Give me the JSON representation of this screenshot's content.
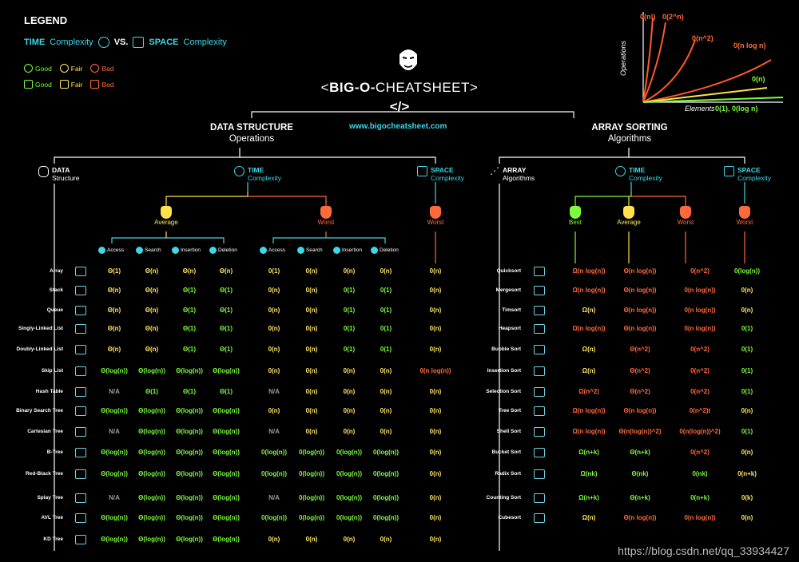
{
  "legend": {
    "title": "LEGEND",
    "time_word": "TIME",
    "time_suffix": "Complexity",
    "vs": "VS.",
    "space_word": "SPACE",
    "space_suffix": "Complexity",
    "good": "Good",
    "fair": "Fair",
    "bad": "Bad"
  },
  "header": {
    "title_prefix": "<",
    "title_bold": "BIG-O-",
    "title_rest": "CHEATSHEET>",
    "code": "</>",
    "site": "www.bigocheatsheet.com"
  },
  "graph": {
    "labels": [
      "0(n!)",
      "0(2^n)",
      "0(n^2)",
      "0(n log n)",
      "0(n)",
      "0(1), 0(log n)"
    ],
    "y_label": "Operations",
    "x_label": "Elements"
  },
  "ds": {
    "title": "DATA STRUCTURE",
    "subtitle": "Operations",
    "col_data_a": "DATA",
    "col_data_b": "Structure",
    "col_time_a": "TIME",
    "col_time_b": "Complexity",
    "col_space_a": "SPACE",
    "col_space_b": "Complexity",
    "average": "Average",
    "worst": "Worst",
    "worst_space": "Worst",
    "ops": [
      "Access",
      "Search",
      "Insertion",
      "Deletion"
    ],
    "rows": [
      {
        "name": "Array",
        "avg": [
          [
            "Θ(1)",
            "y"
          ],
          [
            "Θ(n)",
            "y"
          ],
          [
            "Θ(n)",
            "y"
          ],
          [
            "Θ(n)",
            "y"
          ]
        ],
        "worst": [
          [
            "0(1)",
            "y"
          ],
          [
            "0(n)",
            "y"
          ],
          [
            "0(n)",
            "y"
          ],
          [
            "0(n)",
            "y"
          ]
        ],
        "space": [
          "0(n)",
          "y"
        ]
      },
      {
        "name": "Stack",
        "avg": [
          [
            "Θ(n)",
            "y"
          ],
          [
            "Θ(n)",
            "y"
          ],
          [
            "Θ(1)",
            "g"
          ],
          [
            "Θ(1)",
            "g"
          ]
        ],
        "worst": [
          [
            "0(n)",
            "y"
          ],
          [
            "0(n)",
            "y"
          ],
          [
            "0(1)",
            "g"
          ],
          [
            "0(1)",
            "g"
          ]
        ],
        "space": [
          "0(n)",
          "y"
        ]
      },
      {
        "name": "Queue",
        "avg": [
          [
            "Θ(n)",
            "y"
          ],
          [
            "Θ(n)",
            "y"
          ],
          [
            "Θ(1)",
            "g"
          ],
          [
            "Θ(1)",
            "g"
          ]
        ],
        "worst": [
          [
            "0(n)",
            "y"
          ],
          [
            "0(n)",
            "y"
          ],
          [
            "0(1)",
            "g"
          ],
          [
            "0(1)",
            "g"
          ]
        ],
        "space": [
          "0(n)",
          "y"
        ]
      },
      {
        "name": "Singly-Linked List",
        "avg": [
          [
            "Θ(n)",
            "y"
          ],
          [
            "Θ(n)",
            "y"
          ],
          [
            "Θ(1)",
            "g"
          ],
          [
            "Θ(1)",
            "g"
          ]
        ],
        "worst": [
          [
            "0(n)",
            "y"
          ],
          [
            "0(n)",
            "y"
          ],
          [
            "0(1)",
            "g"
          ],
          [
            "0(1)",
            "g"
          ]
        ],
        "space": [
          "0(n)",
          "y"
        ]
      },
      {
        "name": "Doubly-Linked List",
        "avg": [
          [
            "Θ(n)",
            "y"
          ],
          [
            "Θ(n)",
            "y"
          ],
          [
            "Θ(1)",
            "g"
          ],
          [
            "Θ(1)",
            "g"
          ]
        ],
        "worst": [
          [
            "0(n)",
            "y"
          ],
          [
            "0(n)",
            "y"
          ],
          [
            "0(1)",
            "g"
          ],
          [
            "0(1)",
            "g"
          ]
        ],
        "space": [
          "0(n)",
          "y"
        ]
      },
      {
        "name": "Skip List",
        "avg": [
          [
            "Θ(log(n))",
            "g"
          ],
          [
            "Θ(log(n))",
            "g"
          ],
          [
            "Θ(log(n))",
            "g"
          ],
          [
            "Θ(log(n))",
            "g"
          ]
        ],
        "worst": [
          [
            "0(n)",
            "y"
          ],
          [
            "0(n)",
            "y"
          ],
          [
            "0(n)",
            "y"
          ],
          [
            "0(n)",
            "y"
          ]
        ],
        "space": [
          "0(n log(n))",
          "r"
        ]
      },
      {
        "name": "Hash Table",
        "avg": [
          [
            "N/A",
            "n"
          ],
          [
            "Θ(1)",
            "g"
          ],
          [
            "Θ(1)",
            "g"
          ],
          [
            "Θ(1)",
            "g"
          ]
        ],
        "worst": [
          [
            "N/A",
            "n"
          ],
          [
            "0(n)",
            "y"
          ],
          [
            "0(n)",
            "y"
          ],
          [
            "0(n)",
            "y"
          ]
        ],
        "space": [
          "0(n)",
          "y"
        ]
      },
      {
        "name": "Binary Search Tree",
        "avg": [
          [
            "Θ(log(n))",
            "g"
          ],
          [
            "Θ(log(n))",
            "g"
          ],
          [
            "Θ(log(n))",
            "g"
          ],
          [
            "Θ(log(n))",
            "g"
          ]
        ],
        "worst": [
          [
            "0(n)",
            "y"
          ],
          [
            "0(n)",
            "y"
          ],
          [
            "0(n)",
            "y"
          ],
          [
            "0(n)",
            "y"
          ]
        ],
        "space": [
          "0(n)",
          "y"
        ]
      },
      {
        "name": "Cartesian Tree",
        "avg": [
          [
            "N/A",
            "n"
          ],
          [
            "Θ(log(n))",
            "g"
          ],
          [
            "Θ(log(n))",
            "g"
          ],
          [
            "Θ(log(n))",
            "g"
          ]
        ],
        "worst": [
          [
            "N/A",
            "n"
          ],
          [
            "0(n)",
            "y"
          ],
          [
            "0(n)",
            "y"
          ],
          [
            "0(n)",
            "y"
          ]
        ],
        "space": [
          "0(n)",
          "y"
        ]
      },
      {
        "name": "B-Tree",
        "avg": [
          [
            "Θ(log(n))",
            "g"
          ],
          [
            "Θ(log(n))",
            "g"
          ],
          [
            "Θ(log(n))",
            "g"
          ],
          [
            "Θ(log(n))",
            "g"
          ]
        ],
        "worst": [
          [
            "0(log(n))",
            "g"
          ],
          [
            "0(log(n))",
            "g"
          ],
          [
            "0(log(n))",
            "g"
          ],
          [
            "0(log(n))",
            "g"
          ]
        ],
        "space": [
          "0(n)",
          "y"
        ]
      },
      {
        "name": "Red-Black Tree",
        "avg": [
          [
            "Θ(log(n))",
            "g"
          ],
          [
            "Θ(log(n))",
            "g"
          ],
          [
            "Θ(log(n))",
            "g"
          ],
          [
            "Θ(log(n))",
            "g"
          ]
        ],
        "worst": [
          [
            "0(log(n))",
            "g"
          ],
          [
            "0(log(n))",
            "g"
          ],
          [
            "0(log(n))",
            "g"
          ],
          [
            "0(log(n))",
            "g"
          ]
        ],
        "space": [
          "0(n)",
          "y"
        ]
      },
      {
        "name": "Splay Tree",
        "avg": [
          [
            "N/A",
            "n"
          ],
          [
            "Θ(log(n))",
            "g"
          ],
          [
            "Θ(log(n))",
            "g"
          ],
          [
            "Θ(log(n))",
            "g"
          ]
        ],
        "worst": [
          [
            "N/A",
            "n"
          ],
          [
            "0(log(n))",
            "g"
          ],
          [
            "0(log(n))",
            "g"
          ],
          [
            "0(log(n))",
            "g"
          ]
        ],
        "space": [
          "0(n)",
          "y"
        ]
      },
      {
        "name": "AVL Tree",
        "avg": [
          [
            "Θ(log(n))",
            "g"
          ],
          [
            "Θ(log(n))",
            "g"
          ],
          [
            "Θ(log(n))",
            "g"
          ],
          [
            "Θ(log(n))",
            "g"
          ]
        ],
        "worst": [
          [
            "0(log(n))",
            "g"
          ],
          [
            "0(log(n))",
            "g"
          ],
          [
            "0(log(n))",
            "g"
          ],
          [
            "0(log(n))",
            "g"
          ]
        ],
        "space": [
          "0(n)",
          "y"
        ]
      },
      {
        "name": "KD Tree",
        "avg": [
          [
            "Θ(log(n))",
            "g"
          ],
          [
            "Θ(log(n))",
            "g"
          ],
          [
            "Θ(log(n))",
            "g"
          ],
          [
            "Θ(log(n))",
            "g"
          ]
        ],
        "worst": [
          [
            "0(n)",
            "y"
          ],
          [
            "0(n)",
            "y"
          ],
          [
            "0(n)",
            "y"
          ],
          [
            "0(n)",
            "y"
          ]
        ],
        "space": [
          "0(n)",
          "y"
        ]
      }
    ]
  },
  "sort": {
    "title": "ARRAY SORTING",
    "subtitle": "Algorithms",
    "col_arr_a": "ARRAY",
    "col_arr_b": "Algorithms",
    "col_time_a": "TIME",
    "col_time_b": "Complexity",
    "col_space_a": "SPACE",
    "col_space_b": "Complexity",
    "best": "Best",
    "average": "Average",
    "worst": "Worst",
    "worst_space": "Worst",
    "rows": [
      {
        "name": "Quicksort",
        "v": [
          [
            "Ω(n log(n))",
            "r"
          ],
          [
            "Θ(n log(n))",
            "r"
          ],
          [
            "0(n^2)",
            "r"
          ],
          [
            "0(log(n))",
            "g"
          ]
        ]
      },
      {
        "name": "Mergesort",
        "v": [
          [
            "Ω(n log(n))",
            "r"
          ],
          [
            "Θ(n log(n))",
            "r"
          ],
          [
            "0(n log(n))",
            "r"
          ],
          [
            "0(n)",
            "y"
          ]
        ]
      },
      {
        "name": "Timsort",
        "v": [
          [
            "Ω(n)",
            "y"
          ],
          [
            "Θ(n log(n))",
            "r"
          ],
          [
            "0(n log(n))",
            "r"
          ],
          [
            "0(n)",
            "y"
          ]
        ]
      },
      {
        "name": "Heapsort",
        "v": [
          [
            "Ω(n log(n))",
            "r"
          ],
          [
            "Θ(n log(n))",
            "r"
          ],
          [
            "0(n log(n))",
            "r"
          ],
          [
            "0(1)",
            "g"
          ]
        ]
      },
      {
        "name": "Bubble Sort",
        "v": [
          [
            "Ω(n)",
            "y"
          ],
          [
            "Θ(n^2)",
            "r"
          ],
          [
            "0(n^2)",
            "r"
          ],
          [
            "0(1)",
            "g"
          ]
        ]
      },
      {
        "name": "Insertion Sort",
        "v": [
          [
            "Ω(n)",
            "y"
          ],
          [
            "Θ(n^2)",
            "r"
          ],
          [
            "0(n^2)",
            "r"
          ],
          [
            "0(1)",
            "g"
          ]
        ]
      },
      {
        "name": "Selection Sort",
        "v": [
          [
            "Ω(n^2)",
            "r"
          ],
          [
            "Θ(n^2)",
            "r"
          ],
          [
            "0(n^2)",
            "r"
          ],
          [
            "0(1)",
            "g"
          ]
        ]
      },
      {
        "name": "Tree Sort",
        "v": [
          [
            "Ω(n log(n))",
            "r"
          ],
          [
            "Θ(n log(n))",
            "r"
          ],
          [
            "0(n^2)t",
            "r"
          ],
          [
            "0(n)",
            "y"
          ]
        ]
      },
      {
        "name": "Shell Sort",
        "v": [
          [
            "Ω(n log(n))",
            "r"
          ],
          [
            "Θ(n(log(n))^2)",
            "r"
          ],
          [
            "0(n(log(n))^2)",
            "r"
          ],
          [
            "0(1)",
            "g"
          ]
        ]
      },
      {
        "name": "Bucket Sort",
        "v": [
          [
            "Ω(n+k)",
            "g"
          ],
          [
            "Θ(n+k)",
            "g"
          ],
          [
            "0(n^2)",
            "r"
          ],
          [
            "0(n)",
            "y"
          ]
        ]
      },
      {
        "name": "Radix Sort",
        "v": [
          [
            "Ω(nk)",
            "g"
          ],
          [
            "Θ(nk)",
            "g"
          ],
          [
            "0(nk)",
            "g"
          ],
          [
            "0(n+k)",
            "y"
          ]
        ]
      },
      {
        "name": "Counting Sort",
        "v": [
          [
            "Ω(n+k)",
            "g"
          ],
          [
            "Θ(n+k)",
            "g"
          ],
          [
            "0(n+k)",
            "g"
          ],
          [
            "0(k)",
            "y"
          ]
        ]
      },
      {
        "name": "Cubesort",
        "v": [
          [
            "Ω(n)",
            "y"
          ],
          [
            "Θ(n log(n))",
            "r"
          ],
          [
            "0(n log(n))",
            "r"
          ],
          [
            "0(n)",
            "y"
          ]
        ]
      }
    ]
  },
  "watermark": "https://blog.csdn.net/qq_33934427"
}
